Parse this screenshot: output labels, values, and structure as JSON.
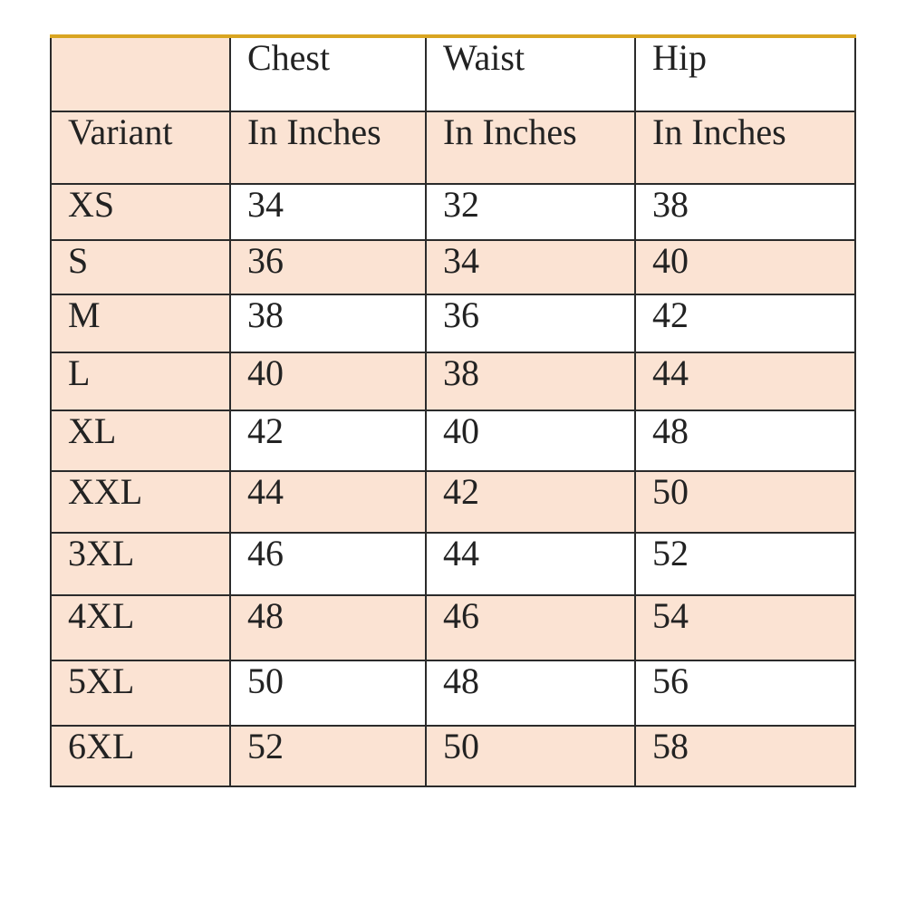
{
  "table": {
    "header_row1": [
      "",
      "Chest",
      "Waist",
      "Hip"
    ],
    "header_row2": [
      "Variant",
      "In Inches",
      "In Inches",
      "In Inches"
    ],
    "rows": [
      [
        "XS",
        "34",
        "32",
        "38"
      ],
      [
        "S",
        "36",
        "34",
        "40"
      ],
      [
        "M",
        "38",
        "36",
        "42"
      ],
      [
        "L",
        "40",
        "38",
        "44"
      ],
      [
        "XL",
        "42",
        "40",
        "48"
      ],
      [
        "XXL",
        "44",
        "42",
        "50"
      ],
      [
        "3XL",
        "46",
        "44",
        "52"
      ],
      [
        "4XL",
        "48",
        "46",
        "54"
      ],
      [
        "5XL",
        "50",
        "48",
        "56"
      ],
      [
        "6XL",
        "52",
        "50",
        "58"
      ]
    ]
  },
  "colors": {
    "peach": "#fbe3d3",
    "white": "#ffffff",
    "top_border": "#d9a521"
  }
}
